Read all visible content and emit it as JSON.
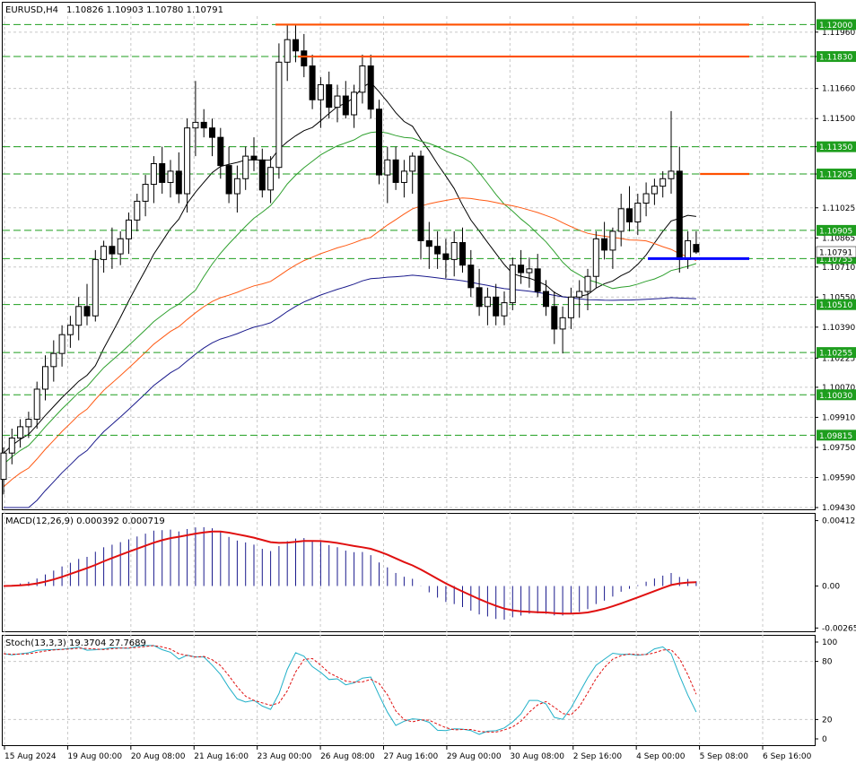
{
  "colors": {
    "background": "#ffffff",
    "grid": "#c8c8c8",
    "bull": "#ffffff",
    "bear": "#000000",
    "candle_outline": "#000000",
    "ma_fast": "#000000",
    "ma_mid": "#2ea02e",
    "ma_slow": "#ff5a14",
    "ma_long": "#1a1a8c",
    "level_green": "#1e9e1e",
    "level_orange": "#ff5000",
    "level_blue": "#0000ff",
    "macd_hist": "#1a1a8c",
    "macd_signal": "#e01010",
    "stoch_main": "#20b0c8",
    "stoch_signal": "#e01010"
  },
  "header": {
    "symbol": "EURUSD,H4",
    "ohlc": "1.10826 1.10903 1.10780 1.10791"
  },
  "chart_data": [
    {
      "type": "candlestick",
      "title": "EURUSD,H4",
      "ylim": [
        1.0943,
        1.12045
      ],
      "y_ticks": [
        "1.11960",
        "1.11830",
        "1.11660",
        "1.11500",
        "1.11350",
        "1.11205",
        "1.11025",
        "1.10865",
        "1.10710",
        "1.10550",
        "1.10390",
        "1.10225",
        "1.10070",
        "1.09910",
        "1.09750",
        "1.09590",
        "1.09430"
      ],
      "x_ticks": [
        "15 Aug 2024",
        "19 Aug 00:00",
        "20 Aug 08:00",
        "21 Aug 16:00",
        "23 Aug 00:00",
        "26 Aug 08:00",
        "27 Aug 16:00",
        "29 Aug 00:00",
        "30 Aug 08:00",
        "2 Sep 16:00",
        "4 Sep 00:00",
        "5 Sep 08:00",
        "6 Sep 16:00"
      ],
      "candles": [
        [
          1.0958,
          1.0975,
          1.095,
          1.0972
        ],
        [
          1.0972,
          1.0985,
          1.0966,
          1.098
        ],
        [
          1.098,
          1.099,
          1.0975,
          1.0986
        ],
        [
          1.0986,
          1.0994,
          1.098,
          1.099
        ],
        [
          1.099,
          1.101,
          1.0985,
          1.1006
        ],
        [
          1.1006,
          1.1024,
          1.1,
          1.1018
        ],
        [
          1.1018,
          1.1032,
          1.101,
          1.1025
        ],
        [
          1.1025,
          1.104,
          1.1018,
          1.1035
        ],
        [
          1.1035,
          1.1045,
          1.1028,
          1.104
        ],
        [
          1.104,
          1.1055,
          1.1032,
          1.105
        ],
        [
          1.105,
          1.1062,
          1.104,
          1.1045
        ],
        [
          1.1045,
          1.108,
          1.1042,
          1.1075
        ],
        [
          1.1075,
          1.1085,
          1.1068,
          1.1082
        ],
        [
          1.1082,
          1.1092,
          1.107,
          1.1078
        ],
        [
          1.1078,
          1.109,
          1.1072,
          1.1086
        ],
        [
          1.1086,
          1.11,
          1.1078,
          1.1096
        ],
        [
          1.1096,
          1.111,
          1.109,
          1.1106
        ],
        [
          1.1106,
          1.112,
          1.1098,
          1.1115
        ],
        [
          1.1115,
          1.113,
          1.1105,
          1.1126
        ],
        [
          1.1126,
          1.1135,
          1.111,
          1.1116
        ],
        [
          1.1116,
          1.1128,
          1.1108,
          1.1122
        ],
        [
          1.1122,
          1.1132,
          1.1105,
          1.111
        ],
        [
          1.111,
          1.115,
          1.11,
          1.1145
        ],
        [
          1.1145,
          1.117,
          1.113,
          1.1148
        ],
        [
          1.1148,
          1.1155,
          1.114,
          1.1145
        ],
        [
          1.1145,
          1.115,
          1.113,
          1.114
        ],
        [
          1.114,
          1.1145,
          1.1118,
          1.1125
        ],
        [
          1.1125,
          1.1135,
          1.1105,
          1.111
        ],
        [
          1.111,
          1.1125,
          1.11,
          1.1118
        ],
        [
          1.1118,
          1.1135,
          1.1112,
          1.113
        ],
        [
          1.113,
          1.114,
          1.1122,
          1.1128
        ],
        [
          1.1128,
          1.1134,
          1.1108,
          1.1112
        ],
        [
          1.1112,
          1.113,
          1.1105,
          1.1124
        ],
        [
          1.1124,
          1.119,
          1.1118,
          1.118
        ],
        [
          1.118,
          1.12,
          1.117,
          1.1192
        ],
        [
          1.1192,
          1.12,
          1.118,
          1.1186
        ],
        [
          1.1186,
          1.1195,
          1.1172,
          1.1178
        ],
        [
          1.1178,
          1.1184,
          1.1155,
          1.116
        ],
        [
          1.116,
          1.1172,
          1.1145,
          1.1168
        ],
        [
          1.1168,
          1.1175,
          1.115,
          1.1156
        ],
        [
          1.1156,
          1.1168,
          1.1148,
          1.1162
        ],
        [
          1.1162,
          1.117,
          1.115,
          1.1152
        ],
        [
          1.1152,
          1.1168,
          1.1145,
          1.1164
        ],
        [
          1.1164,
          1.1184,
          1.1158,
          1.1178
        ],
        [
          1.1178,
          1.1184,
          1.115,
          1.1155
        ],
        [
          1.1155,
          1.116,
          1.1115,
          1.112
        ],
        [
          1.112,
          1.1135,
          1.1105,
          1.1128
        ],
        [
          1.1128,
          1.1135,
          1.1112,
          1.1116
        ],
        [
          1.1116,
          1.1128,
          1.1108,
          1.1122
        ],
        [
          1.1122,
          1.1132,
          1.111,
          1.113
        ],
        [
          1.113,
          1.1133,
          1.1075,
          1.1085
        ],
        [
          1.1085,
          1.1095,
          1.107,
          1.1082
        ],
        [
          1.1082,
          1.109,
          1.107,
          1.1078
        ],
        [
          1.1078,
          1.1086,
          1.1065,
          1.1075
        ],
        [
          1.1075,
          1.109,
          1.1066,
          1.1084
        ],
        [
          1.1084,
          1.1092,
          1.1068,
          1.1072
        ],
        [
          1.1072,
          1.108,
          1.1055,
          1.106
        ],
        [
          1.106,
          1.107,
          1.1045,
          1.105
        ],
        [
          1.105,
          1.106,
          1.104,
          1.1055
        ],
        [
          1.1055,
          1.1062,
          1.104,
          1.1045
        ],
        [
          1.1045,
          1.1058,
          1.104,
          1.1052
        ],
        [
          1.1052,
          1.1076,
          1.1048,
          1.1072
        ],
        [
          1.1072,
          1.108,
          1.1062,
          1.1068
        ],
        [
          1.1068,
          1.1076,
          1.106,
          1.107
        ],
        [
          1.107,
          1.1078,
          1.1055,
          1.1058
        ],
        [
          1.1058,
          1.1064,
          1.1045,
          1.105
        ],
        [
          1.105,
          1.1058,
          1.103,
          1.1038
        ],
        [
          1.1038,
          1.105,
          1.1025,
          1.1044
        ],
        [
          1.1044,
          1.106,
          1.1038,
          1.1055
        ],
        [
          1.1055,
          1.1064,
          1.1044,
          1.1058
        ],
        [
          1.1058,
          1.107,
          1.1048,
          1.1066
        ],
        [
          1.1066,
          1.109,
          1.106,
          1.1086
        ],
        [
          1.1086,
          1.1095,
          1.1075,
          1.108
        ],
        [
          1.108,
          1.1092,
          1.107,
          1.109
        ],
        [
          1.109,
          1.111,
          1.1082,
          1.1102
        ],
        [
          1.1102,
          1.1114,
          1.109,
          1.1095
        ],
        [
          1.1095,
          1.111,
          1.1088,
          1.1105
        ],
        [
          1.1105,
          1.1116,
          1.1098,
          1.111
        ],
        [
          1.111,
          1.1118,
          1.1104,
          1.1114
        ],
        [
          1.1114,
          1.1122,
          1.1108,
          1.1118
        ],
        [
          1.1118,
          1.1154,
          1.111,
          1.1122
        ],
        [
          1.1122,
          1.1135,
          1.1068,
          1.1075
        ],
        [
          1.1075,
          1.109,
          1.107,
          1.1085
        ],
        [
          1.1083,
          1.109,
          1.1078,
          1.1079
        ]
      ],
      "levels": [
        {
          "label": "1.12000",
          "price": 1.12,
          "color": "green",
          "style": "dashed"
        },
        {
          "label": "1.11830",
          "price": 1.1183,
          "color": "green",
          "style": "dashed"
        },
        {
          "label": "1.11350",
          "price": 1.1135,
          "color": "green",
          "style": "dashed"
        },
        {
          "label": "1.11205",
          "price": 1.11205,
          "color": "green",
          "style": "dashed"
        },
        {
          "label": "1.10905",
          "price": 1.10905,
          "color": "green",
          "style": "dashed"
        },
        {
          "label": "1.10755",
          "price": 1.10755,
          "color": "green",
          "style": "dashed"
        },
        {
          "label": "1.10510",
          "price": 1.1051,
          "color": "green",
          "style": "dashed"
        },
        {
          "label": "1.10255",
          "price": 1.10255,
          "color": "green",
          "style": "dashed"
        },
        {
          "label": "1.10030",
          "price": 1.1003,
          "color": "green",
          "style": "dashed"
        },
        {
          "label": "1.09815",
          "price": 1.09815,
          "color": "green",
          "style": "dashed"
        }
      ],
      "current_price_label": "1.10791",
      "horizontal_lines": [
        {
          "price": 1.12,
          "from": 37,
          "to": 100,
          "color": "orange"
        },
        {
          "price": 1.1183,
          "from": 40,
          "to": 100,
          "color": "orange"
        },
        {
          "price": 1.11205,
          "from": 94,
          "to": 100,
          "color": "orange"
        },
        {
          "price": 1.10755,
          "from": 87,
          "to": 100,
          "color": "blue"
        }
      ]
    },
    {
      "type": "line",
      "title": "MACD(12,26,9) 0.000392 0.000719",
      "ylim": [
        -0.0028,
        0.0045
      ],
      "y_ticks": [
        "0.004127",
        "0.00",
        "-0.00265"
      ]
    },
    {
      "type": "line",
      "title": "Stoch(13,3,3) 19.3704 27.7689",
      "ylim": [
        0,
        100
      ],
      "y_ticks": [
        "100",
        "80",
        "20",
        "0"
      ]
    }
  ]
}
